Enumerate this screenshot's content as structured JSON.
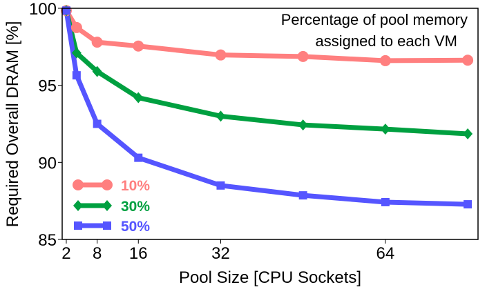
{
  "chart_data": {
    "type": "line",
    "title": "",
    "xlabel": "Pool Size [CPU Sockets]",
    "ylabel": "Required Overall DRAM [%]",
    "xlim": [
      1.2,
      82
    ],
    "ylim": [
      85,
      100
    ],
    "xticks": [
      2,
      8,
      16,
      32,
      64
    ],
    "yticks": [
      85,
      90,
      95,
      100
    ],
    "grid": false,
    "legend_title": "Percentage of pool memory\nassigned to each VM",
    "legend_title_lines": [
      "Percentage of pool memory",
      "assigned to each VM"
    ],
    "legend_placement": "bottom-left",
    "x": [
      2,
      4,
      8,
      16,
      32,
      48,
      64,
      80
    ],
    "series": [
      {
        "name": "10%",
        "color": "#ff7f7f",
        "marker": "circle",
        "values": [
          99.85,
          98.75,
          97.8,
          97.55,
          96.97,
          96.87,
          96.6,
          96.63
        ]
      },
      {
        "name": "30%",
        "color": "#00a040",
        "marker": "diamond",
        "values": [
          99.85,
          97.1,
          95.9,
          94.2,
          93.0,
          92.43,
          92.16,
          91.85
        ]
      },
      {
        "name": "50%",
        "color": "#5555ff",
        "marker": "square",
        "values": [
          99.85,
          95.65,
          92.5,
          90.3,
          88.5,
          87.86,
          87.42,
          87.28
        ]
      }
    ]
  }
}
